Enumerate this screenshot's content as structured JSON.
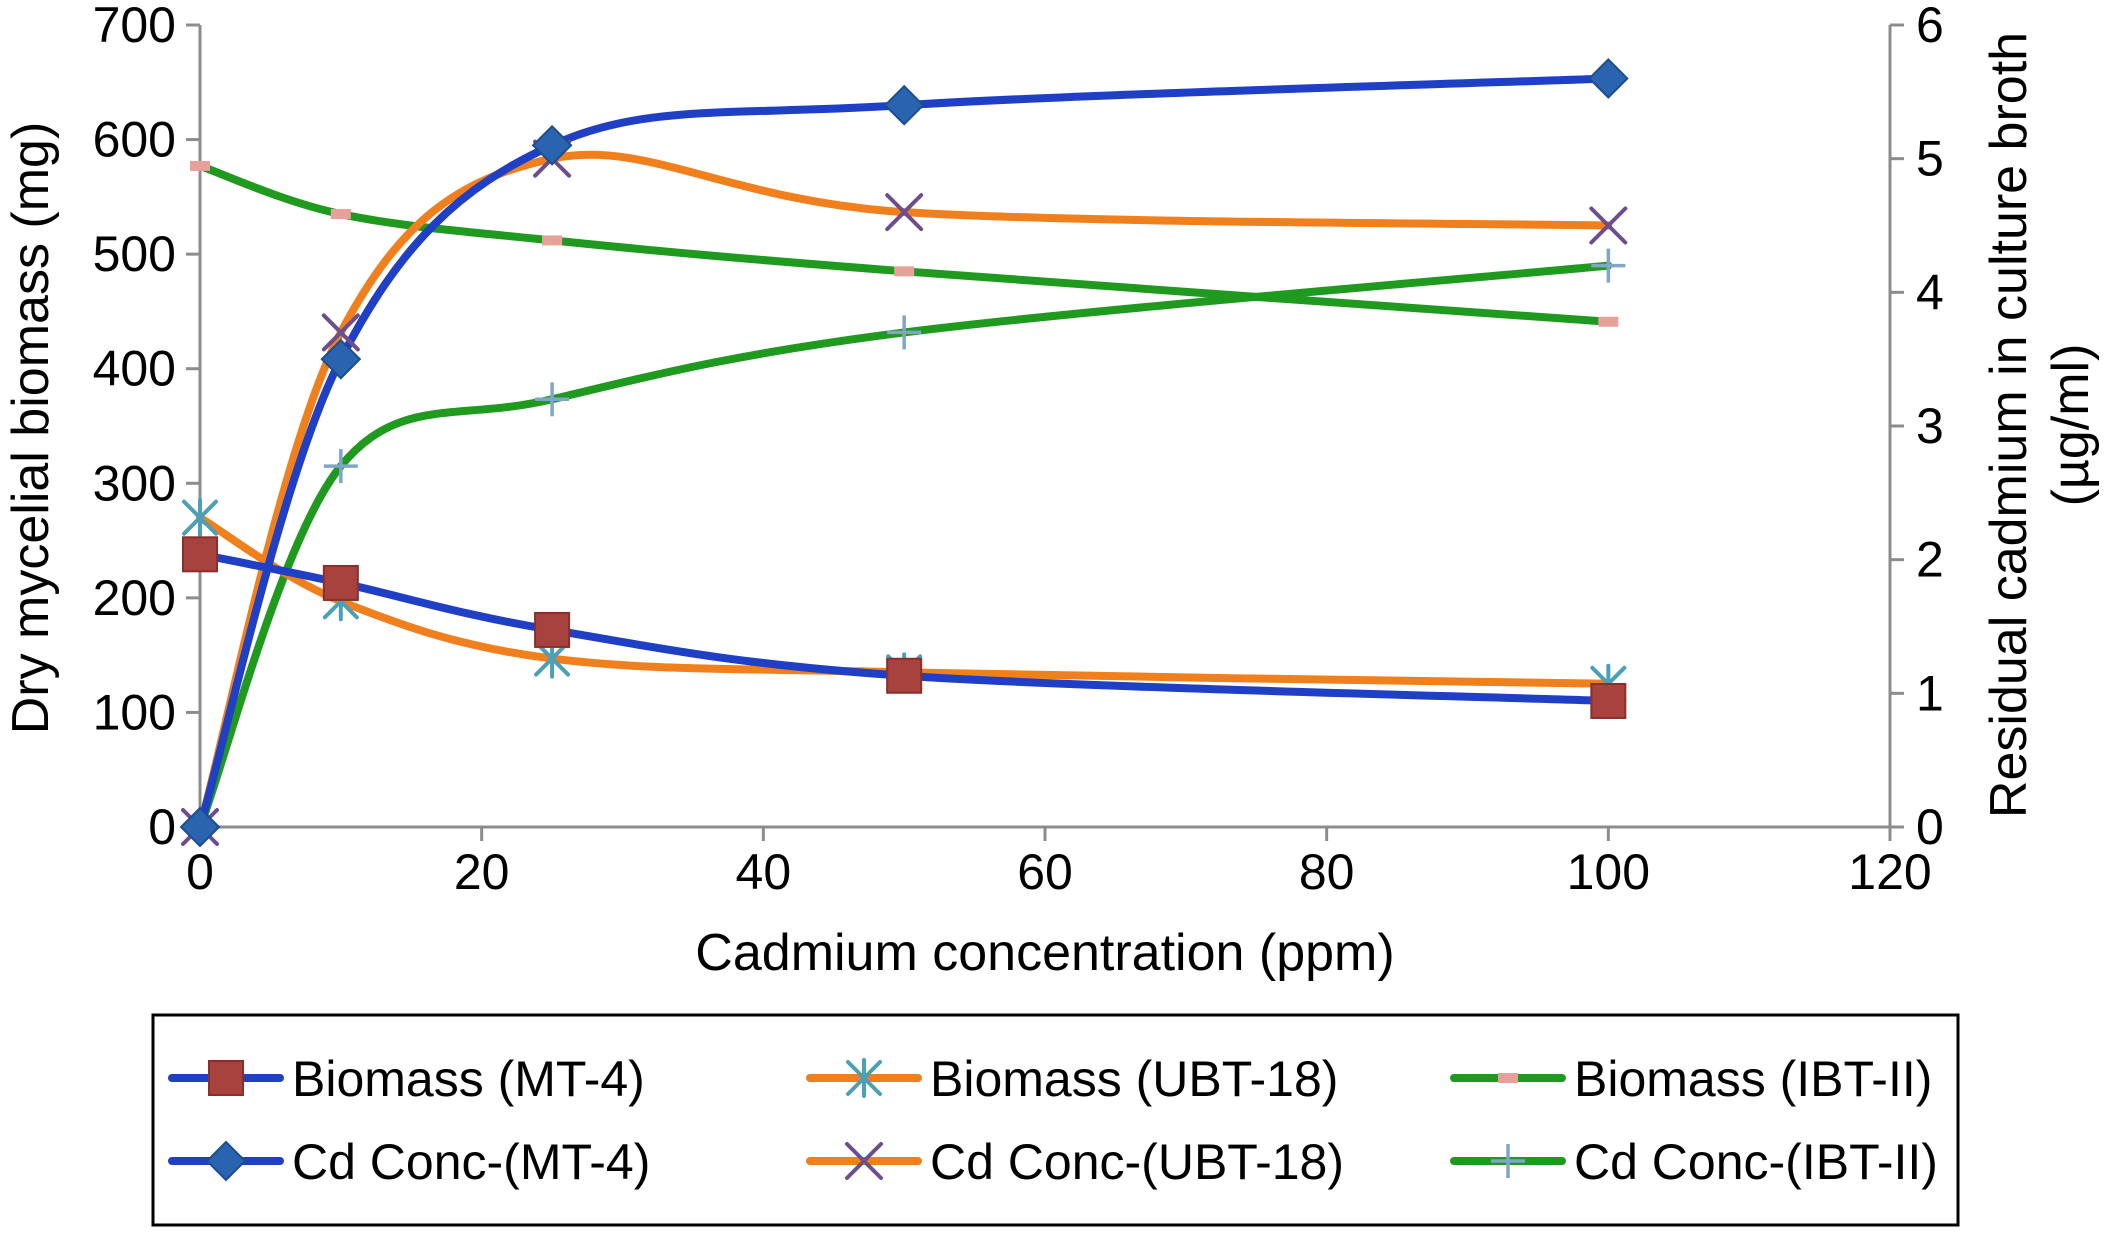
{
  "chart_data": {
    "type": "line",
    "xlabel": "Cadmium concentration (ppm)",
    "ylabel": "Dry mycelial biomass (mg)",
    "ylabel2": [
      "Residual cadmium in culture broth",
      "(µg/ml)"
    ],
    "xlim": [
      0,
      120
    ],
    "ylim": [
      0,
      700
    ],
    "ylim2": [
      0,
      6
    ],
    "xticks": [
      "0",
      "20",
      "40",
      "60",
      "80",
      "100",
      "120"
    ],
    "yticks": [
      "0",
      "100",
      "200",
      "300",
      "400",
      "500",
      "600",
      "700"
    ],
    "yticks2": [
      "0",
      "1",
      "2",
      "3",
      "4",
      "5",
      "6"
    ],
    "x": [
      0,
      10,
      25,
      50,
      100
    ],
    "legend_position": "bottom",
    "series": [
      {
        "name": "Biomass (MT-4)",
        "axis": "left",
        "color": "#1f3fc4",
        "marker": "square",
        "marker_color": "#a8423f",
        "values": [
          238,
          213,
          172,
          132,
          110
        ]
      },
      {
        "name": "Biomass (UBT-18)",
        "axis": "left",
        "color": "#f07f1d",
        "marker": "asterisk",
        "marker_color": "#4ba0b6",
        "values": [
          270,
          197,
          147,
          135,
          125
        ]
      },
      {
        "name": "Biomass (IBT-II)",
        "axis": "left",
        "color": "#1f9a1f",
        "marker": "dash",
        "marker_color": "#e6a19a",
        "values": [
          577,
          535,
          512,
          485,
          441
        ]
      },
      {
        "name": "Cd Conc-(MT-4)",
        "axis": "right",
        "color": "#1f3fc4",
        "marker": "diamond",
        "marker_color": "#2a64b0",
        "values": [
          0,
          3.5,
          5.1,
          5.4,
          5.6
        ]
      },
      {
        "name": "Cd Conc-(UBT-18)",
        "axis": "right",
        "color": "#f07f1d",
        "marker": "x",
        "marker_color": "#6e4d8f",
        "values": [
          0,
          3.7,
          5.0,
          4.6,
          4.5
        ]
      },
      {
        "name": "Cd Conc-(IBT-II)",
        "axis": "right",
        "color": "#1f9a1f",
        "marker": "plus",
        "marker_color": "#7fa6c8",
        "values": [
          0,
          2.7,
          3.2,
          3.7,
          4.2
        ]
      }
    ]
  }
}
